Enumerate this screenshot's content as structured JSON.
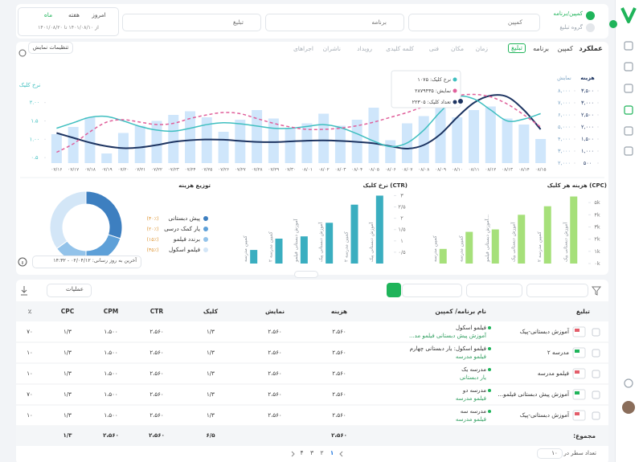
{
  "filters": {
    "toggles": [
      "کمپین/برنامه",
      "گروه تبلیغ"
    ],
    "dropdowns": [
      "کمپین",
      "برنامه",
      "تبلیغ"
    ],
    "periods": [
      "امروز",
      "هفته",
      "ماه"
    ],
    "date_range": "از ۱۴۰۱/۰۸/۱۰ تا ۱۴۰۱/۰۸/۲۰"
  },
  "tabs": {
    "title": "عملکرد",
    "levels": [
      "کمپین",
      "برنامه",
      "تبلیغ"
    ],
    "dimensions": [
      "زمان",
      "مکان",
      "فنی",
      "کلمه کلیدی",
      "رویداد",
      "ناشران",
      "اجراهای"
    ],
    "settings": "تنظیمات نمایش"
  },
  "chart_data": [
    {
      "type": "combo",
      "y_label": "نرخ کلیک",
      "y2_label": "هزینه",
      "y3_label": "نمایش",
      "categories": [
        "۰۷/۱۶",
        "۰۷/۱۷",
        "۰۷/۱۸",
        "۰۷/۱۹",
        "۰۷/۲۰",
        "۰۷/۲۱",
        "۰۷/۲۲",
        "۰۷/۲۳",
        "۰۷/۲۴",
        "۰۷/۲۵",
        "۰۷/۲۶",
        "۰۷/۲۷",
        "۰۷/۲۸",
        "۰۷/۲۹",
        "۰۷/۳۰",
        "۰۸/۰۱",
        "۰۸/۰۲",
        "۰۸/۰۳",
        "۰۸/۰۴",
        "۰۸/۰۵",
        "۰۸/۰۶",
        "۰۸/۰۷",
        "۰۸/۰۸",
        "۰۸/۰۹",
        "۰۸/۱۰",
        "۰۸/۱۱",
        "۰۸/۱۲",
        "۰۸/۱۳",
        "۰۸/۱۴",
        "۰۸/۱۵"
      ],
      "ylim": [
        0.35,
        2.65
      ],
      "yticks": [
        {
          "value": 0.5,
          "label": "۰.۵"
        },
        {
          "value": 1,
          "label": "۱.۰۰"
        },
        {
          "value": 1.5,
          "label": "۱.۵"
        },
        {
          "value": 2,
          "label": "۲.۰۰"
        }
      ],
      "y2lim": [
        500,
        4000
      ],
      "y2ticks": [
        {
          "value": 500,
          "label": "۵۰۰"
        },
        {
          "value": 1000,
          "label": "۱,۰۰۰"
        },
        {
          "value": 1500,
          "label": "۱,۵۰۰"
        },
        {
          "value": 2000,
          "label": "۲,۰۰۰"
        },
        {
          "value": 2500,
          "label": "۲,۵۰۰"
        },
        {
          "value": 3000,
          "label": "۳,۰۰۰"
        },
        {
          "value": 3500,
          "label": "۳,۵۰۰"
        }
      ],
      "y3lim": [
        2000,
        9000
      ],
      "y3ticks": [
        {
          "value": 2000,
          "label": "۲,۰۰۰"
        },
        {
          "value": 3000,
          "label": "۳,۰۰۰"
        },
        {
          "value": 4000,
          "label": "۴,۰۰۰"
        },
        {
          "value": 5000,
          "label": "۵,۰۰۰"
        },
        {
          "value": 6000,
          "label": "۶,۰۰۰"
        },
        {
          "value": 7000,
          "label": "۷,۰۰۰"
        },
        {
          "value": 8000,
          "label": "۸,۰۰۰"
        }
      ],
      "series": [
        {
          "type": "bar",
          "axis": "y3",
          "color": "#cfe6fb",
          "values": [
            4400,
            5000,
            5800,
            2800,
            4500,
            5100,
            5500,
            6000,
            6300,
            5800,
            4600,
            5600,
            6400,
            5700,
            4900,
            5300,
            6100,
            5100,
            5600,
            6600,
            3900,
            5300,
            5900,
            7700,
            5800,
            6400,
            6700,
            5700,
            5200,
            4000
          ]
        },
        {
          "type": "line",
          "axis": "y2",
          "color": "#1d3461",
          "values": [
            1750,
            1550,
            1350,
            1200,
            1120,
            1150,
            1250,
            1380,
            1450,
            1480,
            1470,
            1420,
            1380,
            1370,
            1400,
            1430,
            1440,
            1420,
            1380,
            1320,
            1200,
            1100,
            1250,
            1700,
            2400,
            3000,
            3300,
            3250,
            2700,
            1900
          ]
        },
        {
          "type": "line",
          "axis": "y",
          "color": "#3fbfc0",
          "values": [
            1.3,
            1.45,
            1.6,
            1.62,
            1.5,
            1.35,
            1.25,
            1.22,
            1.3,
            1.4,
            1.45,
            1.42,
            1.36,
            1.3,
            1.3,
            1.35,
            1.4,
            1.32,
            1.15,
            0.95,
            0.8,
            0.9,
            1.25,
            1.75,
            2.15,
            2.1,
            1.8,
            1.5,
            1.55,
            1.7
          ]
        },
        {
          "type": "line",
          "axis": "y3",
          "color": "#e0609b",
          "dashed": true,
          "values": [
            2900,
            3600,
            4600,
            5400,
            5600,
            5400,
            5200,
            5300,
            5700,
            6000,
            6200,
            6100,
            5700,
            5300,
            5000,
            4800,
            4800,
            4900,
            5100,
            5400,
            5800,
            6200,
            6700,
            7200,
            7600,
            7700,
            7500,
            6900,
            6000,
            5000
          ]
        }
      ],
      "tooltip": [
        "نرخ کلیک: ۱۰۷۵",
        "نمایش: ۲۸۷۹۴۳۵",
        "تعداد کلیک: ۲۲۳۰۵"
      ]
    },
    {
      "type": "bar",
      "title": "هزینه هر کلیک (CPC)",
      "categories": [
        "کمپین مدرسه",
        "کمپین مدرسه",
        "آموزش دبستانی فیلمو...",
        "آموزش دبستانی پیک",
        "کمپین مدرسه ۲",
        "آموزش دبستانی پیک"
      ],
      "values": [
        1.2,
        2.6,
        2.8,
        4.0,
        4.7,
        5.5
      ],
      "color": "#a6e07a",
      "ylim": [
        0,
        5.8
      ],
      "yticks": [
        {
          "value": 0,
          "label": "۰k"
        },
        {
          "value": 1,
          "label": "۱k"
        },
        {
          "value": 2,
          "label": "۲k"
        },
        {
          "value": 3,
          "label": "۳k"
        },
        {
          "value": 4,
          "label": "۴k"
        },
        {
          "value": 5,
          "label": "۵k"
        }
      ]
    },
    {
      "type": "bar",
      "title": "نرخ کلیک (CTR)",
      "categories": [
        "کمپین مدرسه",
        "کمپین مدرسه ۲",
        "آموزش دبستانی فیلمو",
        "آموزش دبستانی پیک",
        "کمپین مدرسه ۲",
        "آموزش دبستانی پیک"
      ],
      "values": [
        0.6,
        1.1,
        1.2,
        1.8,
        2.6,
        3.0
      ],
      "color": "#3aaec0",
      "ylim": [
        0,
        3.3
      ],
      "yticks": [
        {
          "value": 0.5,
          "label": "۰/۵"
        },
        {
          "value": 1,
          "label": "۱"
        },
        {
          "value": 1.5,
          "label": "۱/۵"
        },
        {
          "value": 2,
          "label": "۲"
        },
        {
          "value": 2.5,
          "label": "۲/۵"
        },
        {
          "value": 3,
          "label": "۳"
        }
      ]
    },
    {
      "type": "pie",
      "title": "توزیع هزینه",
      "categories": [
        "پیش دبستانی",
        "یار کمک درسی",
        "برندد فیلمو",
        "فیلمو اسکول"
      ],
      "values": [
        30,
        20,
        15,
        35
      ],
      "value_labels": [
        "(۳۰٪)",
        "(۲۰٪)",
        "(۱۵٪)",
        "(۳۵٪)"
      ],
      "colors": [
        "#3d7fc0",
        "#5ea0d8",
        "#93c3ea",
        "#d3e6f7"
      ]
    }
  ],
  "update_note": "آخرین به روز رسانی: ۰۲/۰۴/۱۲ - ۱۴:۳۲",
  "table": {
    "actions": "عملیات",
    "headers": [
      "تبلیغ",
      "نام برنامه/ کمپین",
      "هزینه",
      "نمایش",
      "کلیک",
      "CTR",
      "CPM",
      "CPC",
      "٪"
    ],
    "rows": [
      {
        "ad": "آموزش دبستانی-پیک",
        "program": "فیلمو اسکول",
        "campaign": "آموزش پیش دبستانی فیلمو مد...",
        "cost": "۲،۵۶۰",
        "impressions": "۲،۵۶۰",
        "clicks": "۱/۳",
        "ctr": "۲،۵۶۰",
        "cpm": "۱،۵۰۰",
        "cpc": "۱/۳",
        "share": "۷۰"
      },
      {
        "ad": "مدرسه ۲",
        "program": "فیلمو اسکول: یار دبستانی چهارم",
        "campaign": "فیلمو مدرسه",
        "cost": "۲،۵۶۰",
        "impressions": "۲،۵۶۰",
        "clicks": "۱/۳",
        "ctr": "۲،۵۶۰",
        "cpm": "۱،۵۰۰",
        "cpc": "۱/۳",
        "share": "۱۰"
      },
      {
        "ad": "فیلمو مدرسه",
        "program": "مدرسه یک",
        "campaign": "یار دبستانی",
        "cost": "۲،۵۶۰",
        "impressions": "۲،۵۶۰",
        "clicks": "۱/۳",
        "ctr": "۲،۵۶۰",
        "cpm": "۱،۵۰۰",
        "cpc": "۱/۳",
        "share": "۱۰"
      },
      {
        "ad": "آموزش پیش دبستانی فیلمو...",
        "program": "مدرسه دو",
        "campaign": "فیلمو مدرسه",
        "cost": "۲،۵۶۰",
        "impressions": "۲،۵۶۰",
        "clicks": "۱/۳",
        "ctr": "۲،۵۶۰",
        "cpm": "۱،۵۰۰",
        "cpc": "۱/۳",
        "share": "۷۰"
      },
      {
        "ad": "آموزش دبستانی-پیک",
        "program": "مدرسه سه",
        "campaign": "فیلمو مدرسه",
        "cost": "۲،۵۶۰",
        "impressions": "۲،۵۶۰",
        "clicks": "۱/۳",
        "ctr": "۲،۵۶۰",
        "cpm": "۱،۵۰۰",
        "cpc": "۱/۳",
        "share": "۱۰"
      }
    ],
    "total": {
      "label": "مجموع:",
      "cost": "۲،۵۶۰",
      "clicks": "۶/۵",
      "ctr": "۲،۵۶۰",
      "cpm": "۲،۵۶۰",
      "cpc": "۱/۳"
    }
  },
  "pagination": {
    "rows_label": "تعداد سطر در صفحه",
    "rows_per_page": "۱۰",
    "pages": [
      "۱",
      "۲",
      "۳",
      "۴"
    ]
  }
}
